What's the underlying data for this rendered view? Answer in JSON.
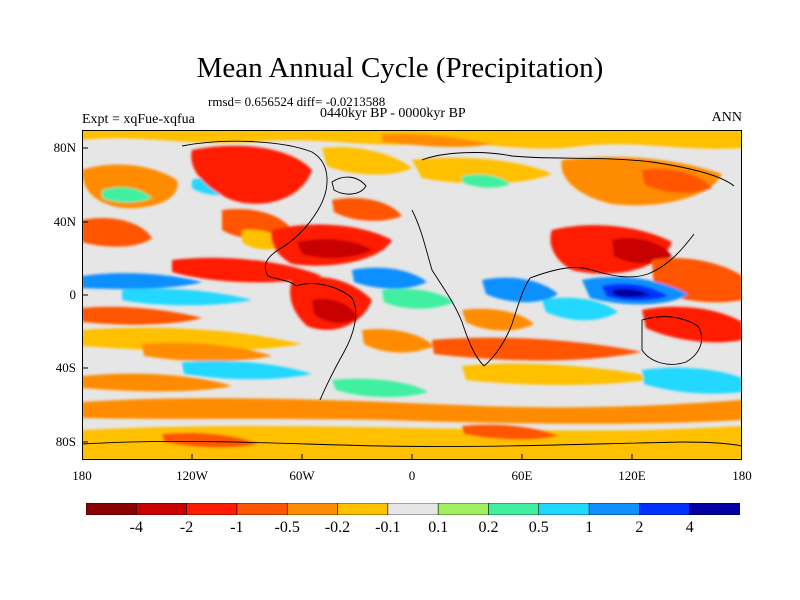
{
  "header": {
    "title": "Mean Annual Cycle (Precipitation)",
    "stats": "rmsd= 0.656524 diff= -0.0213588",
    "period": "0440kyr BP - 0000kyr BP",
    "experiment": "Expt = xqFue-xqfua",
    "season": "ANN"
  },
  "axes": {
    "lat_labels": [
      "80N",
      "40N",
      "0",
      "40S",
      "80S"
    ],
    "lon_labels": [
      "180",
      "120W",
      "60W",
      "0",
      "60E",
      "120E",
      "180"
    ]
  },
  "colorbar": {
    "labels": [
      "-4",
      "-2",
      "-1",
      "-0.5",
      "-0.2",
      "-0.1",
      "0.1",
      "0.2",
      "0.5",
      "1",
      "2",
      "4"
    ],
    "colors": [
      "#8b0000",
      "#c80000",
      "#ff1a00",
      "#ff5500",
      "#ff8c00",
      "#ffc000",
      "#e6e6e6",
      "#a0f060",
      "#40f0a0",
      "#20d8ff",
      "#1090ff",
      "#0030ff",
      "#0000a0"
    ]
  }
}
